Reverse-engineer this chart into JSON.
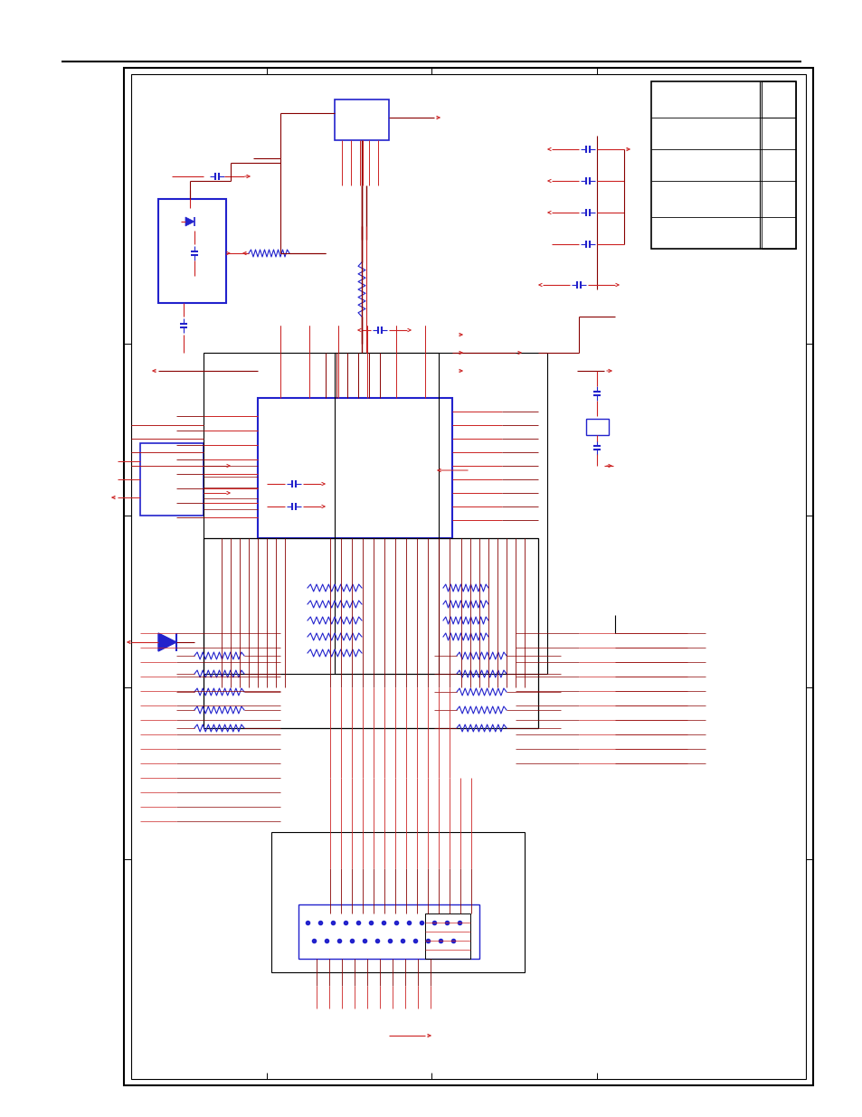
{
  "bg_color": "#ffffff",
  "red": "#cc2222",
  "blue": "#2222cc",
  "black": "#000000",
  "darkred": "#880000"
}
